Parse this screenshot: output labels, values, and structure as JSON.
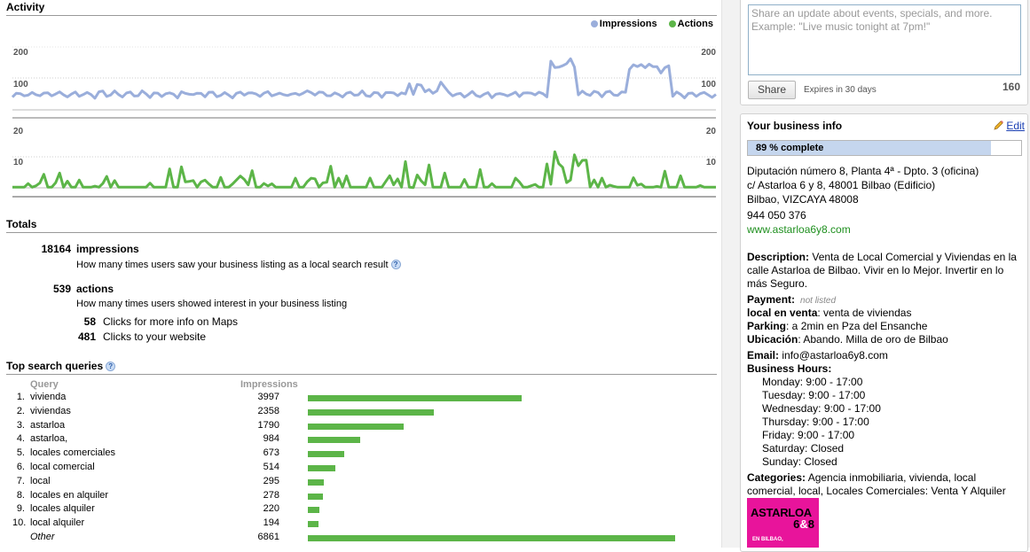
{
  "activity": {
    "title": "Activity",
    "legend": [
      {
        "name": "Impressions",
        "color": "#9aaedb"
      },
      {
        "name": "Actions",
        "color": "#5cb548"
      }
    ]
  },
  "chart_data": [
    {
      "type": "line",
      "series": [
        {
          "name": "Impressions",
          "color": "#9aaedb"
        }
      ],
      "yticks": [
        "200",
        "100"
      ],
      "ylim": [
        0,
        250
      ],
      "grid": true,
      "legend_position": "top-right"
    },
    {
      "type": "line",
      "series": [
        {
          "name": "Actions",
          "color": "#5cb548"
        }
      ],
      "yticks": [
        "20",
        "10"
      ],
      "ylim": [
        0,
        25
      ],
      "grid": true
    }
  ],
  "totals": {
    "title": "Totals",
    "impressions_count": "18164",
    "impressions_label": "impressions",
    "impressions_desc": "How many times users saw your business listing as a local search result",
    "actions_count": "539",
    "actions_label": "actions",
    "actions_desc": "How many times users showed interest in your business listing",
    "maps_count": "58",
    "maps_label": "Clicks for more info on Maps",
    "website_count": "481",
    "website_label": "Clicks to your website"
  },
  "queries": {
    "title": "Top search queries",
    "col_query": "Query",
    "col_impressions": "Impressions",
    "rows": [
      {
        "rank": "1.",
        "term": "vivienda",
        "impressions": 3997
      },
      {
        "rank": "2.",
        "term": "viviendas",
        "impressions": 2358
      },
      {
        "rank": "3.",
        "term": "astarloa",
        "impressions": 1790
      },
      {
        "rank": "4.",
        "term": "astarloa,",
        "impressions": 984
      },
      {
        "rank": "5.",
        "term": "locales comerciales",
        "impressions": 673
      },
      {
        "rank": "6.",
        "term": "local comercial",
        "impressions": 514
      },
      {
        "rank": "7.",
        "term": "local",
        "impressions": 295
      },
      {
        "rank": "8.",
        "term": "locales en alquiler",
        "impressions": 278
      },
      {
        "rank": "9.",
        "term": "locales alquiler",
        "impressions": 220
      },
      {
        "rank": "10.",
        "term": "local alquiler",
        "impressions": 194
      },
      {
        "rank": "",
        "term": "Other",
        "impressions": 6861
      }
    ]
  },
  "share": {
    "placeholder_line1": "Share an update about events, specials, and more.",
    "placeholder_line2": "Example: \"Live music tonight at 7pm!\"",
    "button": "Share",
    "expires": "Expires in 30 days",
    "count": "160"
  },
  "business": {
    "title": "Your business info",
    "edit": "Edit",
    "complete_pct": 89,
    "complete_text": "89 % complete",
    "address1": "Diputación número 8, Planta 4ª - Dpto. 3 (oficina)",
    "address2": "c/ Astarloa 6 y 8, 48001 Bilbao (Edificio)",
    "address3": "Bilbao, VIZCAYA 48008",
    "phone": "944 050 376",
    "website": "www.astarloa6y8.com",
    "description_label": "Description:",
    "description": "Venta de Local Comercial y Viviendas en la calle Astarloa de Bilbao. Vivir en lo Mejor. Invertir en lo más Seguro.",
    "payment_label": "Payment:",
    "payment_value": "not listed",
    "local_label": "local en venta",
    "local_value": ": venta de viviendas",
    "parking_label": "Parking",
    "parking_value": ": a 2min en Pza del Ensanche",
    "ubicacion_label": "Ubicación",
    "ubicacion_value": ": Abando. Milla de oro de Bilbao",
    "email_label": "Email:",
    "email": "info@astarloa6y8.com",
    "hours_label": "Business Hours:",
    "hours": [
      "Monday: 9:00 - 17:00",
      "Tuesday: 9:00 - 17:00",
      "Wednesday: 9:00 - 17:00",
      "Thursday: 9:00 - 17:00",
      "Friday: 9:00 - 17:00",
      "Saturday: Closed",
      "Sunday: Closed"
    ],
    "categories_label": "Categories:",
    "categories": "Agencia inmobiliaria, vivienda, local comercial, local, Locales Comerciales: Venta Y Alquiler",
    "logo_line1": "ASTARLOA",
    "logo_num1": "6",
    "logo_amp": "&",
    "logo_num2": "8",
    "logo_line3": "EN BILBAO,"
  }
}
